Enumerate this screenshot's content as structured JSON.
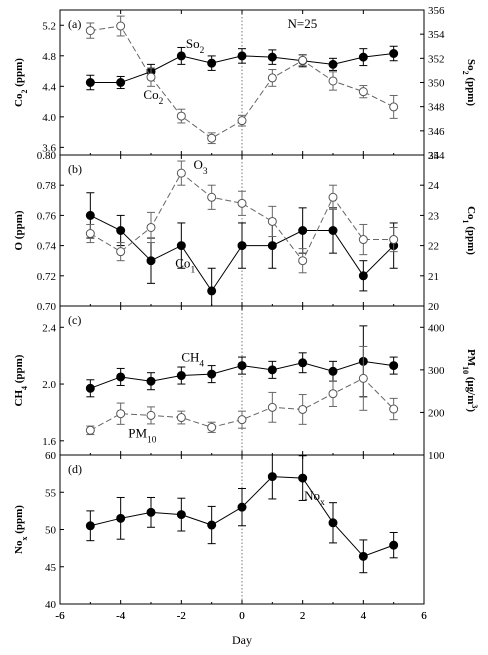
{
  "figure": {
    "xlabel": "Day"
  },
  "chart_data": [
    {
      "type": "line",
      "panel_label": "(a)",
      "annotation_text": "N=25",
      "xlim": [
        -6,
        6
      ],
      "x_ticks": [
        "-6",
        "-4",
        "-2",
        "0",
        "2",
        "4",
        "6"
      ],
      "ylabel_left": "Co2 (ppm)",
      "ylim_left": [
        3.5,
        5.4
      ],
      "yticks_left": [
        3.6,
        4.0,
        4.4,
        4.8,
        5.2
      ],
      "ytick_labels_left": [
        "3.6",
        "4.0",
        "4.4",
        "4.8",
        "5.2"
      ],
      "ylabel_right": "So2 (ppm)",
      "ylim_right": [
        344,
        356
      ],
      "yticks_right": [
        344,
        346,
        348,
        350,
        352,
        354,
        356
      ],
      "ytick_labels_right": [
        "344",
        "346",
        "348",
        "350",
        "352",
        "354",
        "356"
      ],
      "x": [
        -5,
        -4,
        -3,
        -2,
        -1,
        0,
        1,
        2,
        3,
        4,
        5
      ],
      "series": [
        {
          "name": "So2",
          "axis": "right",
          "style": "filled-solid",
          "values": [
            350.0,
            350.0,
            350.9,
            352.2,
            351.6,
            352.2,
            352.1,
            351.8,
            351.5,
            352.1,
            352.4
          ],
          "err": [
            0.6,
            0.5,
            0.6,
            0.7,
            0.6,
            0.6,
            0.6,
            0.5,
            0.5,
            0.7,
            0.6
          ]
        },
        {
          "name": "Co2",
          "axis": "left",
          "style": "open-dashed",
          "values": [
            5.13,
            5.19,
            4.52,
            4.01,
            3.72,
            3.95,
            4.51,
            4.74,
            4.47,
            4.33,
            4.13
          ],
          "err": [
            0.1,
            0.13,
            0.12,
            0.09,
            0.07,
            0.07,
            0.11,
            0.07,
            0.12,
            0.08,
            0.15
          ]
        }
      ],
      "labels": {
        "So2": {
          "base": "So",
          "sub": "2"
        },
        "Co2": {
          "base": "Co",
          "sub": "2"
        },
        "ylabel_left": {
          "base": "Co",
          "sub": "2",
          "tail": " (ppm)"
        },
        "ylabel_right": {
          "base": "So",
          "sub": "2",
          "tail": " (ppm)"
        }
      }
    },
    {
      "type": "line",
      "panel_label": "(b)",
      "xlim": [
        -6,
        6
      ],
      "ylabel_left": "O (ppm)",
      "ylim_left": [
        0.7,
        0.8
      ],
      "yticks_left": [
        0.7,
        0.72,
        0.74,
        0.76,
        0.78,
        0.8
      ],
      "ytick_labels_left": [
        "0.70",
        "0.72",
        "0.74",
        "0.76",
        "0.78",
        "0.80"
      ],
      "ylabel_right": "Co1 (ppm)",
      "ylim_right": [
        20,
        25
      ],
      "yticks_right": [
        20,
        21,
        22,
        23,
        24,
        25
      ],
      "ytick_labels_right": [
        "20",
        "21",
        "22",
        "23",
        "24",
        "25"
      ],
      "x": [
        -5,
        -4,
        -3,
        -2,
        -1,
        0,
        1,
        2,
        3,
        4,
        5
      ],
      "series": [
        {
          "name": "Co1",
          "axis": "left",
          "style": "filled-solid",
          "values": [
            0.76,
            0.75,
            0.73,
            0.74,
            0.71,
            0.74,
            0.74,
            0.75,
            0.75,
            0.72,
            0.74
          ],
          "err": [
            0.015,
            0.01,
            0.015,
            0.015,
            0.015,
            0.015,
            0.015,
            0.015,
            0.015,
            0.01,
            0.015
          ]
        },
        {
          "name": "O3",
          "axis": "right",
          "style": "open-dashed",
          "values": [
            22.4,
            21.8,
            22.6,
            24.4,
            23.6,
            23.4,
            22.8,
            21.5,
            23.6,
            22.2,
            22.2
          ],
          "err": [
            0.3,
            0.3,
            0.5,
            0.4,
            0.4,
            0.4,
            0.5,
            0.4,
            0.4,
            0.5,
            0.4
          ]
        }
      ],
      "labels": {
        "O3": {
          "base": "O",
          "sub": "3"
        },
        "Co1": {
          "base": "Co",
          "sub": "1"
        },
        "ylabel_left": {
          "base": "O",
          "sub": "",
          "tail": " (ppm)"
        },
        "ylabel_right": {
          "base": "Co",
          "sub": "1",
          "tail": " (ppm)"
        }
      }
    },
    {
      "type": "line",
      "panel_label": "(c)",
      "xlim": [
        -6,
        6
      ],
      "ylabel_left": "CH4 (ppm)",
      "ylim_left": [
        1.5,
        2.55
      ],
      "yticks_left": [
        1.6,
        2.0,
        2.4
      ],
      "ytick_labels_left": [
        "1.6",
        "2.0",
        "2.4"
      ],
      "ylabel_right": "PM10 (μg/m3)",
      "ylim_right": [
        100,
        450
      ],
      "yticks_right": [
        100,
        200,
        300,
        400
      ],
      "ytick_labels_right": [
        "100",
        "200",
        "300",
        "400"
      ],
      "x": [
        -5,
        -4,
        -3,
        -2,
        -1,
        0,
        1,
        2,
        3,
        4,
        5
      ],
      "series": [
        {
          "name": "CH4",
          "axis": "left",
          "style": "filled-solid",
          "values": [
            1.97,
            2.05,
            2.02,
            2.06,
            2.07,
            2.13,
            2.1,
            2.15,
            2.09,
            2.16,
            2.13
          ],
          "err": [
            0.06,
            0.06,
            0.06,
            0.06,
            0.06,
            0.06,
            0.06,
            0.07,
            0.07,
            0.25,
            0.06
          ]
        },
        {
          "name": "PM10",
          "axis": "right",
          "style": "open-dashed",
          "values": [
            158,
            197,
            193,
            188,
            165,
            183,
            212,
            207,
            244,
            280,
            208
          ],
          "err": [
            10,
            25,
            20,
            15,
            12,
            20,
            35,
            35,
            30,
            75,
            25
          ]
        }
      ],
      "labels": {
        "CH4": {
          "base": "CH",
          "sub": "4"
        },
        "PM10": {
          "base": "PM",
          "sub": "10"
        },
        "ylabel_left": {
          "base": "CH",
          "sub": "4",
          "tail": " (ppm)"
        },
        "ylabel_right": {
          "base": "PM",
          "sub": "10",
          "tail": " (μg/m",
          "sup": "3",
          "tail2": ")"
        }
      }
    },
    {
      "type": "line",
      "panel_label": "(d)",
      "xlim": [
        -6,
        6
      ],
      "ylabel_left": "Nox (ppm)",
      "ylim_left": [
        40,
        60
      ],
      "yticks_left": [
        40,
        45,
        50,
        55,
        60
      ],
      "ytick_labels_left": [
        "40",
        "45",
        "50",
        "55",
        "60"
      ],
      "x": [
        -5,
        -4,
        -3,
        -2,
        -1,
        0,
        1,
        2,
        3,
        4,
        5
      ],
      "series": [
        {
          "name": "Nox",
          "axis": "left",
          "style": "filled-solid",
          "values": [
            50.5,
            51.5,
            52.3,
            52.0,
            50.6,
            53.0,
            57.1,
            56.9,
            50.9,
            46.4,
            47.9
          ],
          "err": [
            2.0,
            2.8,
            2.0,
            2.2,
            2.5,
            2.5,
            3.0,
            3.0,
            2.7,
            2.2,
            1.7
          ]
        }
      ],
      "labels": {
        "Nox": {
          "base": "No",
          "sub": "x"
        },
        "ylabel_left": {
          "base": "No",
          "sub": "x",
          "tail": " (ppm)"
        }
      }
    }
  ]
}
